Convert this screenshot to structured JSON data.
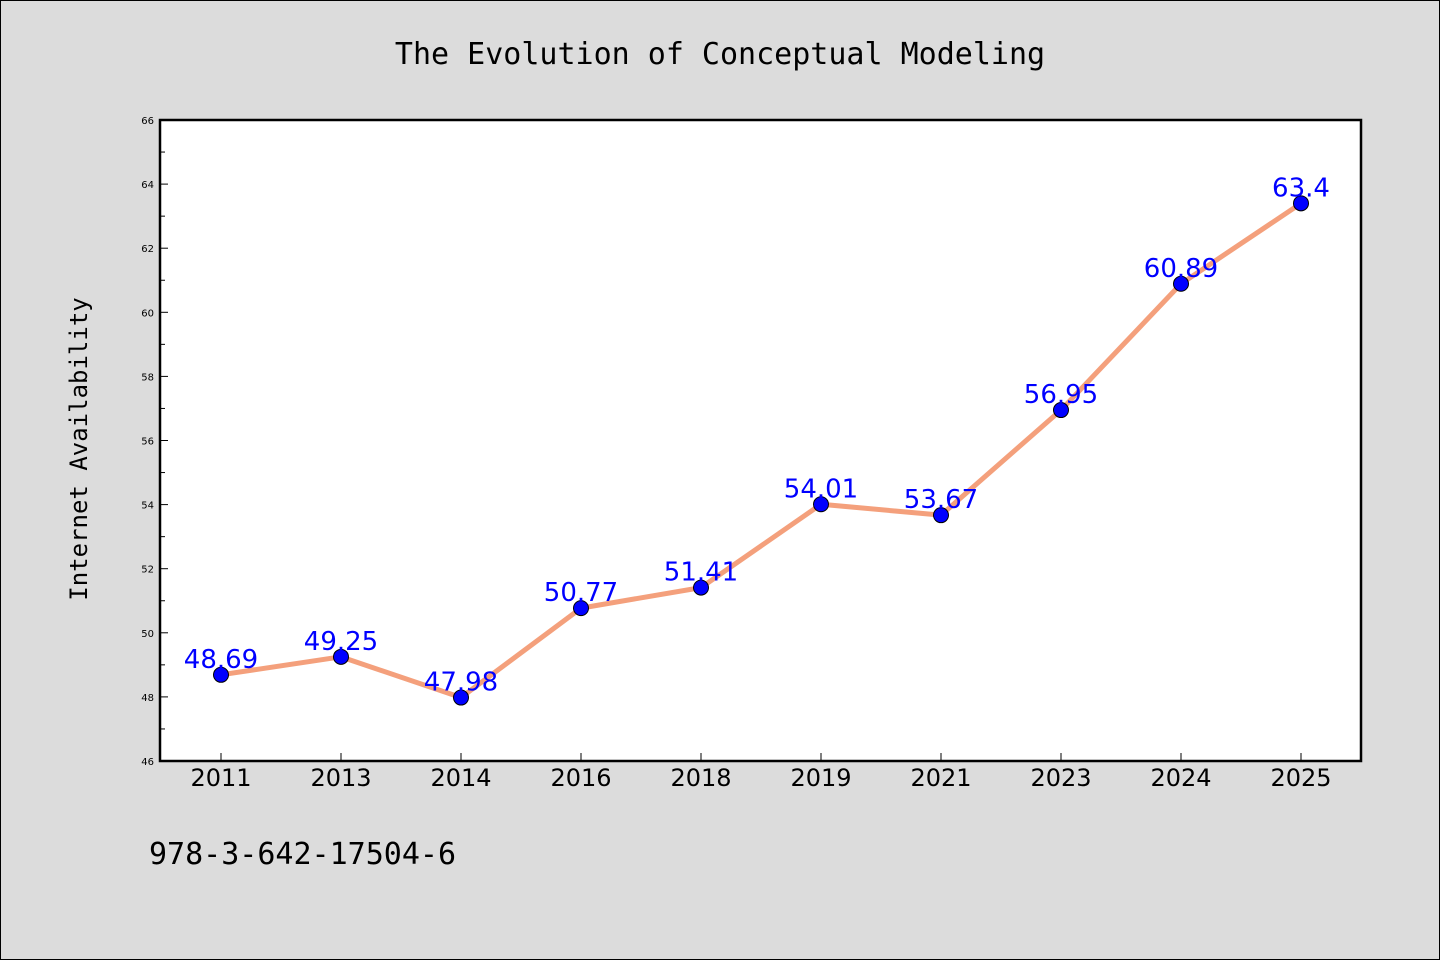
{
  "chart_data": {
    "type": "line",
    "title": "The Evolution of Conceptual Modeling",
    "xlabel": "",
    "ylabel": "Internet Availability",
    "categories": [
      "2011",
      "2013",
      "2014",
      "2016",
      "2018",
      "2019",
      "2021",
      "2023",
      "2024",
      "2025"
    ],
    "series": [
      {
        "values": [
          48.69,
          49.25,
          47.98,
          50.77,
          51.41,
          54.01,
          53.67,
          56.95,
          60.89,
          63.4
        ],
        "labels": [
          "48.69",
          "49.25",
          "47.98",
          "50.77",
          "51.41",
          "54.01",
          "53.67",
          "56.95",
          "60.89",
          "63.4"
        ]
      }
    ],
    "ylim": [
      46,
      66
    ],
    "yticks": [
      "46",
      "48",
      "50",
      "52",
      "54",
      "56",
      "58",
      "60",
      "62",
      "64",
      "66"
    ],
    "grid": false,
    "legend": "none"
  },
  "footer": {
    "text": "978-3-642-17504-6"
  },
  "colors": {
    "background": "#dcdcdc",
    "plot_area": "#ffffff",
    "line": "#f4a07c",
    "marker": "#0000ff",
    "data_label": "#0000ff"
  }
}
